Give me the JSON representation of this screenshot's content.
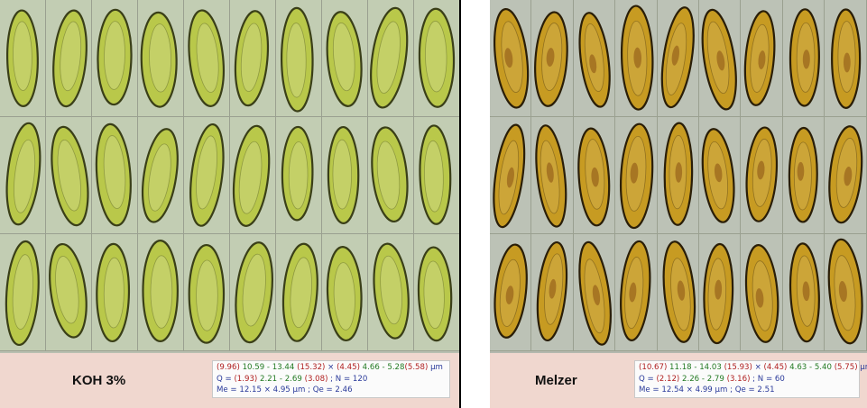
{
  "colors": {
    "koh_spore_fill": "#b9c84a",
    "koh_spore_wall": "#3a3f18",
    "koh_tile_bg": "#c2cdb3",
    "melzer_spore_fill": "#c79b22",
    "melzer_spore_wall": "#2a1e08",
    "melzer_tile_bg": "#bcc2b6",
    "caption_bg": "#f0d7cf",
    "stat_red": "#b02020",
    "stat_green": "#237a23",
    "stat_blue": "#2a3a9a"
  },
  "panels": [
    {
      "stain": "KOH 3%",
      "rows": 3,
      "cols": 10,
      "size_line": {
        "min_len": "(9.96)",
        "len_range": "10.59 - 13.44",
        "max_len": "(15.32)",
        "times": "×",
        "min_wid": "(4.45)",
        "wid_range": "4.66 - 5.28",
        "max_wid": "(5.58)",
        "unit": "µm"
      },
      "q_line": {
        "q_label": "Q =",
        "q_min": "(1.93)",
        "q_range": "2.21 - 2.69",
        "q_max": "(3.08)",
        "n": "; N = 120"
      },
      "mean_line": "Me = 12.15 × 4.95 µm ; Qe = 2.46"
    },
    {
      "stain": "Melzer",
      "rows": 3,
      "cols": 9,
      "size_line": {
        "min_len": "(10.67)",
        "len_range": "11.18 - 14.03",
        "max_len": "(15.93)",
        "times": "×",
        "min_wid": "(4.45)",
        "wid_range": "4.63 - 5.40",
        "max_wid": "(5.75)",
        "unit": "µm"
      },
      "q_line": {
        "q_label": "Q =",
        "q_min": "(2.12)",
        "q_range": "2.26 - 2.79",
        "q_max": "(3.16)",
        "n": "; N = 60"
      },
      "mean_line": "Me = 12.54 × 4.99 µm ; Qe = 2.51"
    }
  ]
}
